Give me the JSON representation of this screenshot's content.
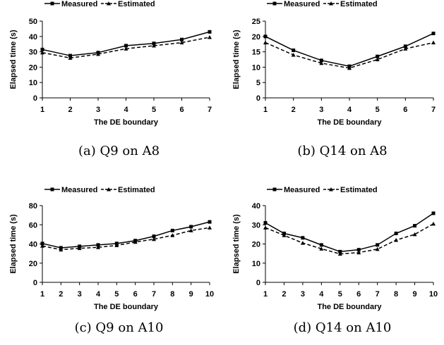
{
  "chart_data": [
    {
      "type": "line",
      "caption": "(a) Q9 on A8",
      "xlabel": "The DE boundary",
      "ylabel": "Elapsed time (s)",
      "x": [
        1,
        2,
        3,
        4,
        5,
        6,
        7
      ],
      "ylim": [
        0,
        50
      ],
      "yticks": [
        0,
        10,
        20,
        30,
        40,
        50
      ],
      "legend_position": "top",
      "grid": false,
      "series": [
        {
          "name": "Measured",
          "style": "solid",
          "marker": "square",
          "values": [
            31.5,
            27.5,
            29.5,
            34,
            35.5,
            38,
            43
          ]
        },
        {
          "name": "Estimated",
          "style": "dashed",
          "marker": "triangle",
          "values": [
            29.5,
            26,
            28.5,
            32,
            34,
            36,
            39.5
          ]
        }
      ]
    },
    {
      "type": "line",
      "caption": "(b) Q14 on A8",
      "xlabel": "The DE boundary",
      "ylabel": "Elapsed time (s)",
      "x": [
        1,
        2,
        3,
        4,
        5,
        6,
        7
      ],
      "ylim": [
        0,
        25
      ],
      "yticks": [
        0,
        5,
        10,
        15,
        20,
        25
      ],
      "legend_position": "top",
      "grid": false,
      "series": [
        {
          "name": "Measured",
          "style": "solid",
          "marker": "square",
          "values": [
            20,
            15.5,
            12.2,
            10.3,
            13.5,
            16.8,
            21
          ]
        },
        {
          "name": "Estimated",
          "style": "dashed",
          "marker": "triangle",
          "values": [
            18,
            14,
            11.3,
            9.7,
            12.5,
            16,
            18
          ]
        }
      ]
    },
    {
      "type": "line",
      "caption": "(c) Q9 on A10",
      "xlabel": "The DE boundary",
      "ylabel": "Elapsed time (s)",
      "x": [
        1,
        2,
        3,
        4,
        5,
        6,
        7,
        8,
        9,
        10
      ],
      "ylim": [
        0,
        80
      ],
      "yticks": [
        0,
        20,
        40,
        60,
        80
      ],
      "legend_position": "top",
      "grid": false,
      "series": [
        {
          "name": "Measured",
          "style": "solid",
          "marker": "square",
          "values": [
            40.5,
            36,
            37.5,
            39,
            40.5,
            43.5,
            48,
            54,
            58,
            63
          ]
        },
        {
          "name": "Estimated",
          "style": "dashed",
          "marker": "triangle",
          "values": [
            38,
            34,
            35.5,
            36.5,
            38.5,
            42,
            45,
            49,
            54,
            57
          ]
        }
      ]
    },
    {
      "type": "line",
      "caption": "(d) Q14 on A10",
      "xlabel": "The DE boundary",
      "ylabel": "Elapsed time (s)",
      "x": [
        1,
        2,
        3,
        4,
        5,
        6,
        7,
        8,
        9,
        10
      ],
      "ylim": [
        0,
        40
      ],
      "yticks": [
        0,
        10,
        20,
        30,
        40
      ],
      "legend_position": "top",
      "grid": false,
      "series": [
        {
          "name": "Measured",
          "style": "solid",
          "marker": "square",
          "values": [
            31,
            25.5,
            23.2,
            19.5,
            16,
            17,
            19.5,
            25.5,
            29.5,
            36
          ]
        },
        {
          "name": "Estimated",
          "style": "dashed",
          "marker": "triangle",
          "values": [
            28.5,
            24.5,
            20.5,
            17.5,
            14.8,
            15.5,
            17.3,
            22,
            25,
            30.5
          ]
        }
      ]
    }
  ]
}
